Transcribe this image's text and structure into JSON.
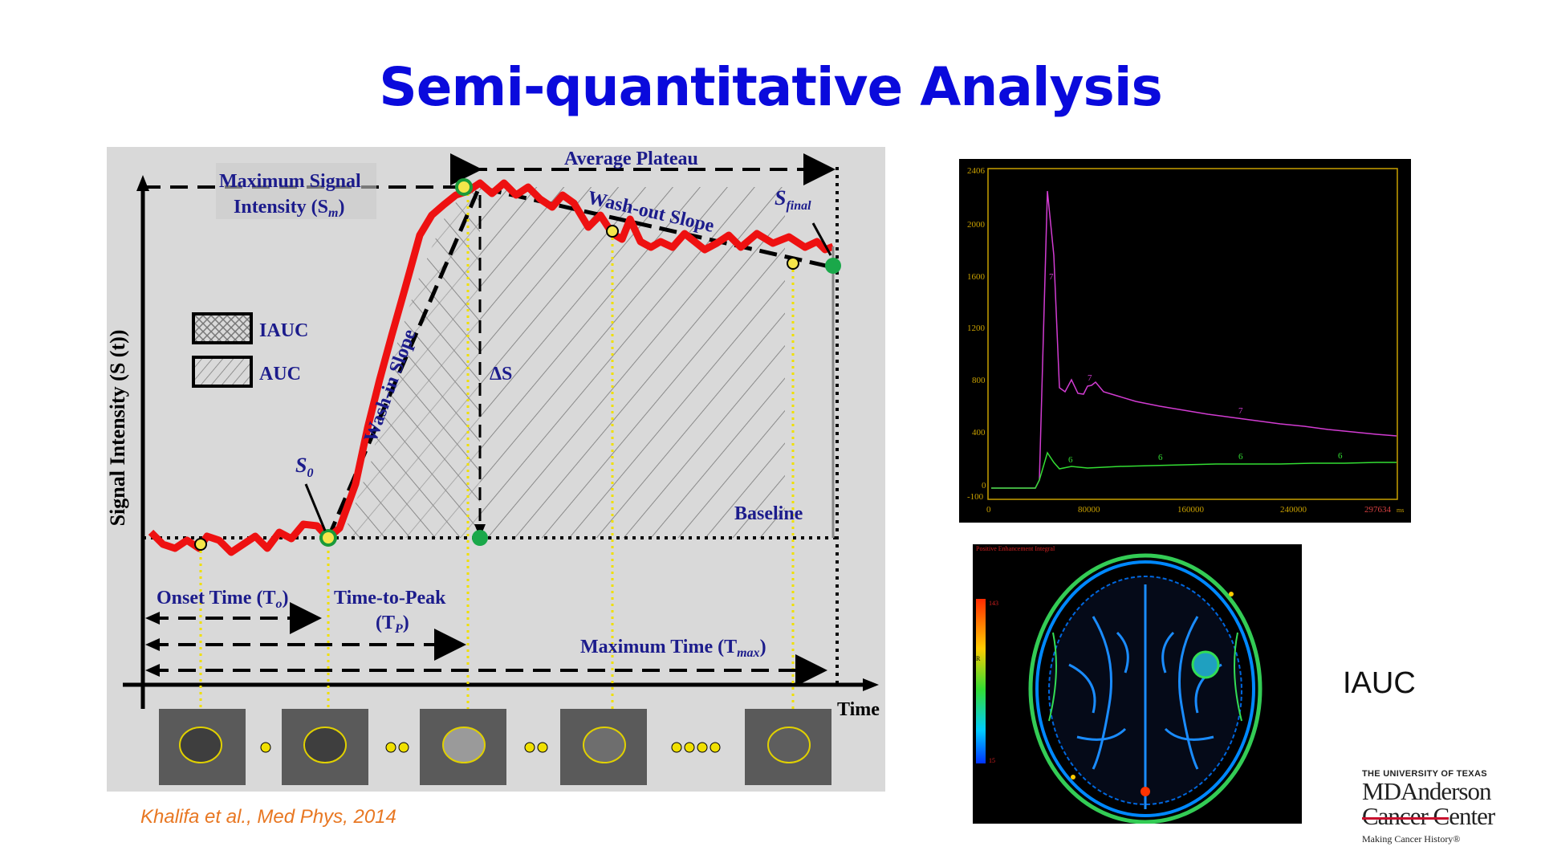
{
  "slide": {
    "title": "Semi-quantitative Analysis",
    "citation": "Khalifa et al., Med Phys, 2014",
    "iauc_caption": "IAUC"
  },
  "diagram": {
    "y_axis_label": "Signal Intensity (S (t))",
    "x_axis_label": "Time",
    "max_signal_label_line1": "Maximum Signal",
    "max_signal_label_line2": "Intensity (S",
    "max_signal_sub": "m",
    "average_plateau": "Average Plateau",
    "wash_out_slope": "Wash-out Slope",
    "wash_in_slope": "Wash-in Slope",
    "s_final": "S",
    "s_final_sub": "final",
    "s0": "S",
    "s0_sub": "0",
    "delta_s": "ΔS",
    "baseline": "Baseline",
    "legend_iauc": "IAUC",
    "legend_auc": "AUC",
    "onset_time": "Onset Time (T",
    "onset_sub": "o",
    "time_to_peak_line1": "Time-to-Peak",
    "time_to_peak_line2": "(T",
    "time_to_peak_sub": "P",
    "maximum_time": "Maximum Time (T",
    "maximum_time_sub": "max"
  },
  "curve_panel": {
    "y_ticks": [
      "2406",
      "2000",
      "1600",
      "1200",
      "800",
      "400",
      "0",
      "-100"
    ],
    "x_ticks": [
      "0",
      "80000",
      "160000",
      "240000"
    ],
    "x_end_label": "297634",
    "x_unit": "ms",
    "series_labels": [
      "7",
      "7",
      "7",
      "6",
      "6",
      "6",
      "6"
    ],
    "colors": {
      "magenta": "#d23cd2",
      "green": "#33dd33",
      "axis": "#c8a000"
    }
  },
  "brain_panel": {
    "title": "Positive Enhancement Integral",
    "scale_max": "143",
    "scale_min": "15",
    "scale_r": "R"
  },
  "logo": {
    "university": "THE UNIVERSITY OF TEXAS",
    "name": "MDAnderson",
    "cancer_center": "Cancer Center",
    "tagline": "Making Cancer History®"
  }
}
